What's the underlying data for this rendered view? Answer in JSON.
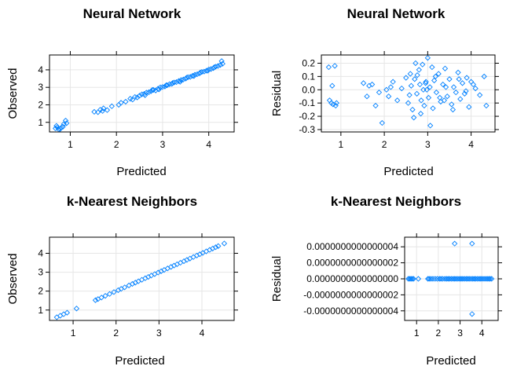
{
  "colors": {
    "points": "#0080ff",
    "grid": "#e6e6e6",
    "axis": "#000000"
  },
  "chart_data": [
    {
      "id": "nn-obs",
      "type": "scatter",
      "title": "Neural Network",
      "xlabel": "Predicted",
      "ylabel": "Observed",
      "xlim": [
        0.55,
        4.55
      ],
      "ylim": [
        0.45,
        4.85
      ],
      "xticks": [
        1,
        2,
        3,
        4
      ],
      "xtick_labels": [
        "1",
        "2",
        "3",
        "4"
      ],
      "yticks": [
        1,
        2,
        3,
        4
      ],
      "ytick_labels": [
        "1",
        "2",
        "3",
        "4"
      ],
      "grid": true,
      "marker": "diamond-open",
      "points_x": [
        0.68,
        0.72,
        0.75,
        0.8,
        0.86,
        0.9,
        0.7,
        0.78,
        0.84,
        0.92,
        1.52,
        1.6,
        1.65,
        1.7,
        1.72,
        1.8,
        1.9,
        2.05,
        2.1,
        2.2,
        2.3,
        2.35,
        2.4,
        2.45,
        2.5,
        2.55,
        2.6,
        2.65,
        2.7,
        2.75,
        2.8,
        2.85,
        2.9,
        2.95,
        3.0,
        3.05,
        3.1,
        3.15,
        3.2,
        3.25,
        3.3,
        3.35,
        3.4,
        3.45,
        3.5,
        3.55,
        3.6,
        3.65,
        3.7,
        3.75,
        3.8,
        3.85,
        3.9,
        3.95,
        4.0,
        4.05,
        4.1,
        4.15,
        4.2,
        4.25,
        4.3,
        2.62,
        2.78,
        2.92,
        3.08,
        3.22,
        3.38,
        3.52,
        3.68,
        3.82,
        3.98,
        4.12,
        4.28
      ],
      "points_y": [
        0.65,
        0.72,
        0.6,
        0.68,
        0.9,
        1.1,
        0.8,
        0.62,
        0.75,
        0.95,
        1.6,
        1.58,
        1.72,
        1.65,
        1.8,
        1.7,
        1.92,
        2.0,
        2.12,
        2.18,
        2.35,
        2.3,
        2.45,
        2.42,
        2.52,
        2.6,
        2.62,
        2.7,
        2.72,
        2.78,
        2.85,
        2.82,
        2.92,
        3.0,
        3.02,
        3.05,
        3.12,
        3.18,
        3.2,
        3.28,
        3.3,
        3.36,
        3.42,
        3.45,
        3.5,
        3.58,
        3.6,
        3.66,
        3.72,
        3.75,
        3.8,
        3.88,
        3.9,
        3.95,
        4.02,
        4.05,
        4.1,
        4.18,
        4.22,
        4.28,
        4.35,
        2.55,
        2.85,
        2.88,
        3.12,
        3.25,
        3.32,
        3.55,
        3.65,
        3.85,
        3.95,
        4.15,
        4.5
      ]
    },
    {
      "id": "nn-res",
      "type": "scatter",
      "title": "Neural Network",
      "xlabel": "Predicted",
      "ylabel": "Residual",
      "xlim": [
        0.55,
        4.55
      ],
      "ylim": [
        -0.318,
        0.262
      ],
      "xticks": [
        1,
        2,
        3,
        4
      ],
      "xtick_labels": [
        "1",
        "2",
        "3",
        "4"
      ],
      "yticks": [
        0.2,
        0.1,
        0.0,
        -0.1,
        -0.2,
        -0.3
      ],
      "ytick_labels": [
        "0.2",
        "0.1",
        "0.0",
        "-0.1",
        "-0.2",
        "-0.3"
      ],
      "grid": true,
      "marker": "diamond-open",
      "points_x": [
        0.72,
        0.74,
        0.78,
        0.8,
        0.82,
        0.86,
        0.9,
        0.88,
        1.52,
        1.6,
        1.65,
        1.72,
        1.8,
        1.88,
        1.95,
        2.05,
        2.1,
        2.15,
        2.2,
        2.3,
        2.4,
        2.5,
        2.55,
        2.6,
        2.62,
        2.65,
        2.7,
        2.72,
        2.75,
        2.8,
        2.82,
        2.85,
        2.88,
        2.9,
        2.92,
        2.95,
        3.0,
        3.02,
        3.05,
        3.1,
        3.12,
        3.15,
        3.2,
        3.25,
        3.3,
        3.35,
        3.4,
        3.45,
        3.5,
        3.55,
        3.6,
        3.65,
        3.7,
        3.75,
        3.8,
        3.85,
        3.9,
        3.95,
        4.0,
        4.1,
        4.2,
        4.3,
        4.35,
        2.68,
        2.76,
        2.84,
        2.96,
        3.06,
        3.18,
        3.28,
        3.42,
        3.58,
        3.72,
        3.88,
        4.05,
        2.58,
        2.98,
        3.38
      ],
      "points_y": [
        0.17,
        -0.08,
        -0.1,
        0.03,
        -0.11,
        0.18,
        -0.1,
        -0.12,
        0.05,
        -0.05,
        0.03,
        0.04,
        -0.12,
        -0.02,
        -0.25,
        0.0,
        -0.05,
        0.02,
        0.06,
        -0.08,
        0.01,
        0.09,
        -0.1,
        0.12,
        0.03,
        -0.15,
        0.08,
        0.2,
        -0.03,
        0.15,
        0.04,
        -0.08,
        0.19,
        0.0,
        -0.12,
        0.05,
        0.24,
        -0.06,
        0.02,
        0.17,
        -0.14,
        0.07,
        -0.02,
        0.12,
        -0.09,
        0.04,
        0.16,
        -0.05,
        0.08,
        -0.11,
        0.02,
        -0.02,
        0.13,
        -0.07,
        0.05,
        -0.03,
        0.09,
        -0.13,
        0.06,
        0.01,
        -0.04,
        0.1,
        -0.12,
        -0.21,
        0.11,
        -0.18,
        0.06,
        -0.27,
        0.1,
        -0.06,
        0.02,
        -0.15,
        0.08,
        -0.01,
        0.04,
        -0.04,
        0.0,
        -0.08
      ]
    },
    {
      "id": "knn-obs",
      "type": "scatter",
      "title": "k-Nearest Neighbors",
      "xlabel": "Predicted",
      "ylabel": "Observed",
      "xlim": [
        0.45,
        4.75
      ],
      "ylim": [
        0.45,
        4.85
      ],
      "xticks": [
        1,
        2,
        3,
        4
      ],
      "xtick_labels": [
        "1",
        "2",
        "3",
        "4"
      ],
      "yticks": [
        1,
        2,
        3,
        4
      ],
      "ytick_labels": [
        "1",
        "2",
        "3",
        "4"
      ],
      "grid": true,
      "marker": "diamond-open",
      "points_x": [
        0.62,
        0.7,
        0.78,
        0.86,
        1.08,
        1.52,
        1.58,
        1.66,
        1.75,
        1.85,
        1.95,
        2.05,
        2.12,
        2.2,
        2.3,
        2.38,
        2.45,
        2.52,
        2.6,
        2.68,
        2.75,
        2.82,
        2.9,
        2.98,
        3.05,
        3.12,
        3.2,
        3.28,
        3.35,
        3.42,
        3.5,
        3.58,
        3.65,
        3.72,
        3.8,
        3.88,
        3.95,
        4.02,
        4.1,
        4.18,
        4.25,
        4.32,
        4.38,
        4.52
      ],
      "points_y": [
        0.62,
        0.7,
        0.78,
        0.86,
        1.08,
        1.52,
        1.58,
        1.66,
        1.75,
        1.85,
        1.95,
        2.05,
        2.12,
        2.2,
        2.3,
        2.38,
        2.45,
        2.52,
        2.6,
        2.68,
        2.75,
        2.82,
        2.9,
        2.98,
        3.05,
        3.12,
        3.2,
        3.28,
        3.35,
        3.42,
        3.5,
        3.58,
        3.65,
        3.72,
        3.8,
        3.88,
        3.95,
        4.02,
        4.1,
        4.18,
        4.25,
        4.32,
        4.38,
        4.52
      ]
    },
    {
      "id": "knn-res",
      "type": "scatter",
      "title": "k-Nearest Neighbors",
      "xlabel": "Predicted",
      "ylabel": "Residual",
      "xlim": [
        0.45,
        4.75
      ],
      "ylim": [
        -5.2e-16,
        5.2e-16
      ],
      "xticks": [
        1,
        2,
        3,
        4
      ],
      "xtick_labels": [
        "1",
        "2",
        "3",
        "4"
      ],
      "yticks": [
        4e-16,
        2e-16,
        0.0,
        -2e-16,
        -4e-16
      ],
      "ytick_labels": [
        "0.0000000000000004",
        "0.0000000000000002",
        "0.0000000000000000",
        "-0.0000000000000002",
        "-0.0000000000000004"
      ],
      "grid": true,
      "marker": "diamond-open",
      "points_x": [
        0.62,
        0.68,
        0.74,
        0.8,
        0.86,
        1.08,
        1.52,
        1.58,
        1.66,
        1.75,
        1.85,
        1.95,
        2.05,
        2.12,
        2.2,
        2.3,
        2.38,
        2.45,
        2.52,
        2.6,
        2.68,
        2.75,
        2.82,
        2.9,
        2.98,
        3.05,
        3.12,
        3.2,
        3.28,
        3.35,
        3.42,
        3.5,
        3.58,
        3.65,
        3.72,
        3.8,
        3.88,
        3.95,
        4.02,
        4.1,
        4.18,
        4.25,
        4.32,
        4.38,
        4.45,
        2.75,
        3.55,
        3.55
      ],
      "points_y": [
        0,
        0,
        0,
        0,
        0,
        0,
        0,
        0,
        0,
        0,
        0,
        0,
        0,
        0,
        0,
        0,
        0,
        0,
        0,
        0,
        0,
        0,
        0,
        0,
        0,
        0,
        0,
        0,
        0,
        0,
        0,
        0,
        0,
        0,
        0,
        0,
        0,
        0,
        0,
        0,
        0,
        0,
        0,
        0,
        0,
        4.4e-16,
        4.4e-16,
        -4.4e-16
      ]
    }
  ]
}
